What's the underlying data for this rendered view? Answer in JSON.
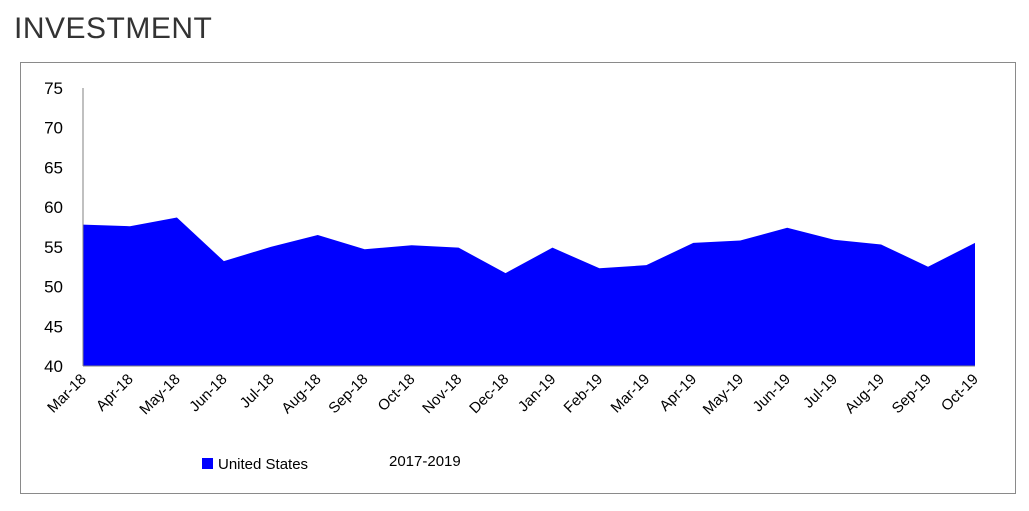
{
  "header": {
    "title": "INVESTMENT"
  },
  "chart_data": {
    "type": "area",
    "title": "",
    "xlabel": "",
    "ylabel": "",
    "categories": [
      "Mar-18",
      "Apr-18",
      "May-18",
      "Jun-18",
      "Jul-18",
      "Aug-18",
      "Sep-18",
      "Oct-18",
      "Nov-18",
      "Dec-18",
      "Jan-19",
      "Feb-19",
      "Mar-19",
      "Apr-19",
      "May-19",
      "Jun-19",
      "Jul-19",
      "Aug-19",
      "Sep-19",
      "Oct-19"
    ],
    "series": [
      {
        "name": "United States",
        "color": "#0000ff",
        "values": [
          57.8,
          57.6,
          58.7,
          53.2,
          55.0,
          56.5,
          54.7,
          55.2,
          54.9,
          51.7,
          54.9,
          52.3,
          52.7,
          55.5,
          55.8,
          57.4,
          55.9,
          55.3,
          52.5,
          55.5
        ]
      }
    ],
    "ylim": [
      40,
      75
    ],
    "yticks": [
      40,
      45,
      50,
      55,
      60,
      65,
      70,
      75
    ],
    "grid": false,
    "legend": {
      "position": "bottom-left",
      "entries": [
        "United States"
      ]
    },
    "annotations": [
      "2017-2019"
    ]
  }
}
